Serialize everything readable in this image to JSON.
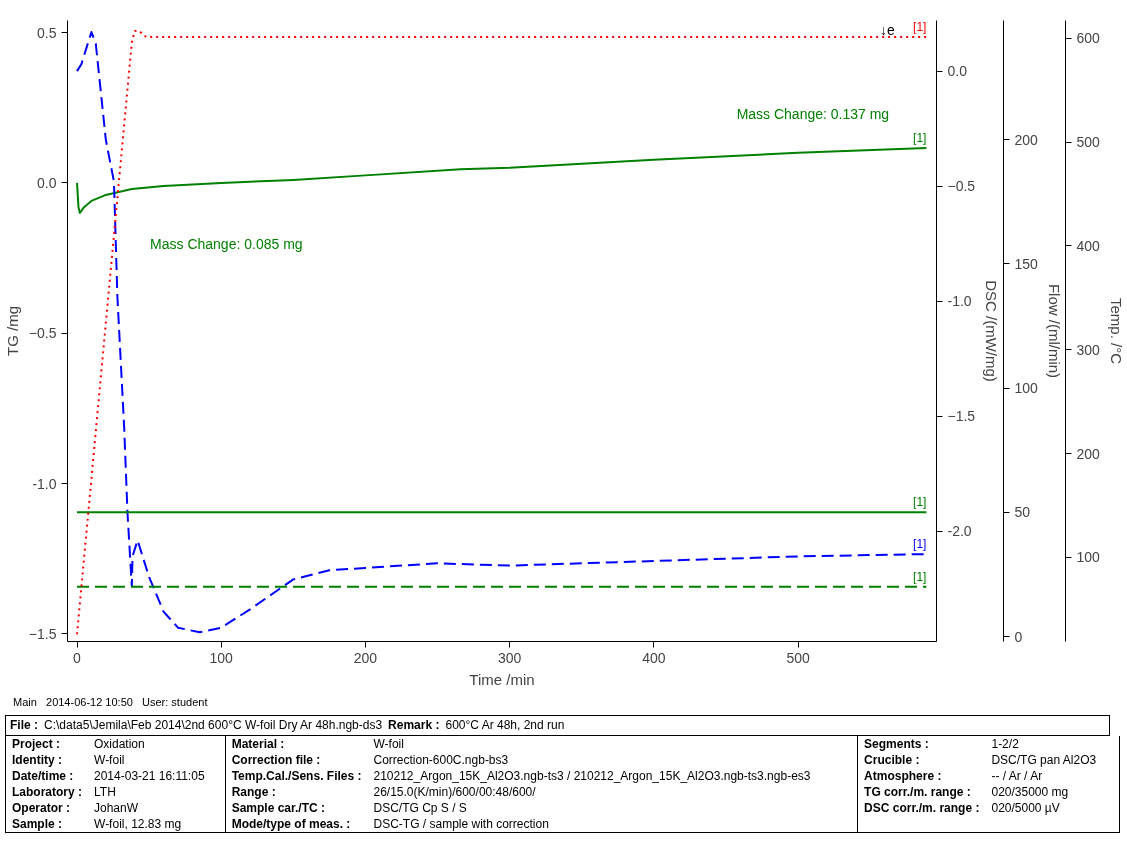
{
  "chart_data": [
    {
      "type": "line",
      "xlabel": "Time /min",
      "ylabel": "TG /mg",
      "y2label": "DSC /(mW/mg)",
      "y3label": "Flow /(ml/min)",
      "xlim": [
        -6.6,
        596
      ],
      "xticks": [
        0,
        100,
        200,
        300,
        400,
        500
      ],
      "ylim": [
        -1.525,
        0.54
      ],
      "yticks": [
        0.5,
        {
          "value": 0,
          "label": "0.0"
        },
        -0.5,
        {
          "value": -1,
          "label": "-1.0"
        },
        -1.5
      ],
      "y2lim": [
        -2.48,
        0.22
      ],
      "y2ticks": [
        {
          "value": 0,
          "label": "0.0"
        },
        -0.5,
        {
          "value": -1,
          "label": "-1.0"
        },
        -1.5,
        {
          "value": -2,
          "label": "-2.0"
        }
      ],
      "y3lim": [
        -2,
        248
      ],
      "y3ticks": [
        0,
        50,
        100,
        150,
        200
      ],
      "grid": false,
      "series": [
        {
          "color": "#008000",
          "line_style": "solid",
          "x": [
            0,
            1,
            2,
            5,
            10,
            20,
            38,
            60,
            100,
            150,
            200,
            266,
            300,
            400,
            500,
            589
          ],
          "values": [
            0.0,
            -0.08,
            -0.1,
            -0.08,
            -0.06,
            -0.04,
            -0.02,
            -0.01,
            0.0,
            0.01,
            0.025,
            0.045,
            0.05,
            0.077,
            0.1,
            0.116
          ]
        },
        {
          "color": "#0000ff",
          "axis": "y2",
          "line_style": "dashed",
          "x": [
            0,
            3,
            10,
            13,
            20,
            25.6,
            28,
            32.7,
            35,
            38,
            38.5,
            42,
            50,
            60,
            70,
            85,
            100,
            120,
            150,
            175,
            200,
            250,
            300,
            400,
            500,
            589
          ],
          "values": [
            0.0,
            0.03,
            0.17,
            0.12,
            -0.3,
            -0.48,
            -0.98,
            -1.55,
            -1.92,
            -2.24,
            -2.11,
            -2.04,
            -2.2,
            -2.35,
            -2.42,
            -2.44,
            -2.42,
            -2.34,
            -2.21,
            -2.17,
            -2.16,
            -2.14,
            -2.15,
            -2.13,
            -2.11,
            -2.1
          ]
        },
        {
          "color": "#008000",
          "axis": "y3",
          "line_style": "solid",
          "x": [
            0,
            589
          ],
          "values": [
            50,
            50
          ]
        },
        {
          "color": "#008000",
          "axis": "y3",
          "line_style": "dashed",
          "x": [
            0,
            589
          ],
          "values": [
            20,
            20
          ]
        }
      ],
      "annotations": [
        "Mass Change: 0.085 mg",
        "Mass Change: 0.137 mg",
        "↓e",
        "[1]",
        "[1]",
        "[1]",
        "[1]",
        "Main   2014-06-12 10:50   User: student",
        "File :",
        "C:\\data5\\Jemila\\Feb 2014\\2nd 600°C W-foil Dry Ar 48h.ngb-ds3",
        "Remark :",
        "600°C Ar 48h, 2nd run",
        "Project :",
        "Oxidation",
        "Identity :",
        "W-foil",
        "Date/time :",
        "2014-03-21 16:11:05",
        "Laboratory :",
        "LTH",
        "Operator :",
        "JohanW",
        "Sample :",
        "W-foil, 12.83 mg",
        "Material :",
        "W-foil",
        "Correction file :",
        "Correction-600C.ngb-bs3",
        "Temp.Cal./Sens. Files :",
        "210212_Argon_15K_Al2O3.ngb-ts3 / 210212_Argon_15K_Al2O3.ngb-ts3.ngb-es3",
        "Range :",
        "26/15.0(K/min)/600/00:48/600/",
        "Sample car./TC :",
        "DSC/TG Cp S / S",
        "Mode/type of meas. :",
        "DSC-TG / sample with correction",
        "Segments :",
        "1-2/2",
        "Crucible :",
        "DSC/TG pan Al2O3",
        "Atmosphere :",
        "-- / Ar / Ar",
        "TG corr./m. range :",
        "020/35000 mg",
        "DSC corr./m. range :",
        "020/5000 µV"
      ]
    },
    {
      "type": "line",
      "ylabel": "Temp. /°C",
      "xlim": [
        -6.6,
        596
      ],
      "ylim": [
        19,
        617
      ],
      "yticks": [
        100,
        200,
        300,
        400,
        500,
        600
      ],
      "tick_labels": "y",
      "series": [
        {
          "color": "#ff0000",
          "line_style": "dotted",
          "x": [
            0,
            10,
            20,
            30,
            38,
            40,
            43,
            48,
            589
          ],
          "values": [
            26,
            176,
            326,
            476,
            596,
            607,
            607,
            601,
            601
          ]
        }
      ],
      "annotations": [
        "[1]"
      ]
    }
  ]
}
